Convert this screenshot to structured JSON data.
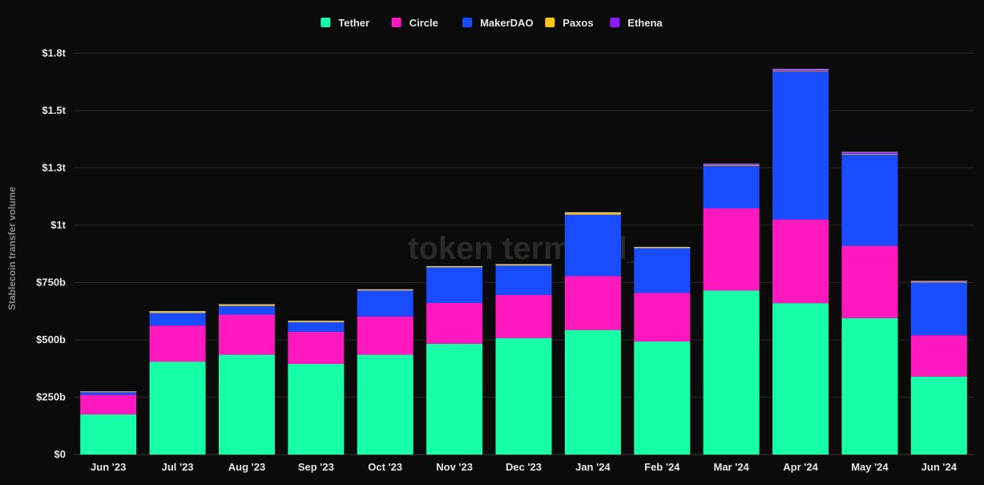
{
  "chart_data": {
    "type": "bar",
    "stacked": true,
    "title": "",
    "xlabel": "",
    "ylabel": "Stablecoin transfer volume",
    "watermark": "token terminal_",
    "ylim": [
      0,
      1800000000000
    ],
    "y_ticks": [
      0,
      250000000000,
      500000000000,
      750000000000,
      1000000000000,
      1250000000000,
      1500000000000,
      1750000000000
    ],
    "y_tick_labels": [
      "$0",
      "$250b",
      "$500b",
      "$750b",
      "$1t",
      "$1.3t",
      "$1.5t",
      "$1.8t"
    ],
    "grid": true,
    "legend_position": "top-center",
    "categories": [
      "Jun '23",
      "Jul '23",
      "Aug '23",
      "Sep '23",
      "Oct '23",
      "Nov '23",
      "Dec '23",
      "Jan '24",
      "Feb '24",
      "Mar '24",
      "Apr '24",
      "May '24",
      "Jun '24"
    ],
    "series": [
      {
        "name": "Tether",
        "color": "#18ffaa",
        "values": [
          175000000000,
          405000000000,
          435000000000,
          395000000000,
          435000000000,
          483000000000,
          508000000000,
          543000000000,
          493000000000,
          715000000000,
          660000000000,
          595000000000,
          340000000000
        ]
      },
      {
        "name": "Circle",
        "color": "#ff19be",
        "values": [
          85000000000,
          157000000000,
          175000000000,
          140000000000,
          167000000000,
          178000000000,
          188000000000,
          235000000000,
          212000000000,
          358000000000,
          365000000000,
          315000000000,
          180000000000
        ]
      },
      {
        "name": "MakerDAO",
        "color": "#1a4dff",
        "values": [
          12000000000,
          55000000000,
          38000000000,
          42000000000,
          113000000000,
          155000000000,
          128000000000,
          268000000000,
          195000000000,
          185000000000,
          645000000000,
          398000000000,
          230000000000
        ]
      },
      {
        "name": "Paxos",
        "color": "#ffc51a",
        "values": [
          2000000000,
          7000000000,
          6000000000,
          5000000000,
          4000000000,
          4000000000,
          5000000000,
          9000000000,
          4000000000,
          3000000000,
          3000000000,
          3000000000,
          3000000000
        ]
      },
      {
        "name": "Ethena",
        "color": "#8f1aff",
        "values": [
          0,
          0,
          0,
          0,
          0,
          0,
          0,
          0,
          0,
          5000000000,
          7000000000,
          7000000000,
          3000000000
        ]
      }
    ]
  }
}
